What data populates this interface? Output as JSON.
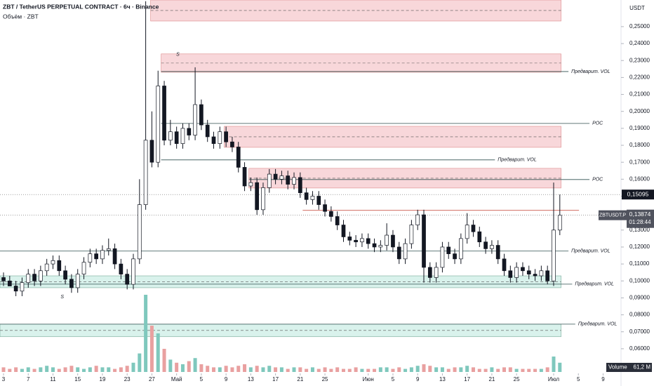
{
  "header": {
    "symbol_line": "ZBT / TetherUS PERPETUAL CONTRACT · 6ч · Binance",
    "volume_line": "Объём · ZBT"
  },
  "chart_data": {
    "type": "candlestick",
    "x": [
      0,
      1,
      2,
      3,
      4,
      5,
      6,
      7,
      8,
      9,
      10,
      11,
      12,
      13,
      14,
      15,
      16,
      17,
      18,
      19,
      20,
      21,
      22,
      23,
      24,
      25,
      26,
      27,
      28,
      29,
      30,
      31,
      32,
      33,
      34,
      35,
      36,
      37,
      38,
      39,
      40,
      41,
      42,
      43,
      44,
      45,
      46,
      47,
      48,
      49,
      50,
      51,
      52,
      53,
      54,
      55,
      56,
      57,
      58,
      59,
      60,
      61,
      62,
      63,
      64,
      65,
      66,
      67,
      68,
      69,
      70,
      71,
      72,
      73,
      74,
      75,
      76,
      77,
      78,
      79,
      80,
      81,
      82,
      83,
      84,
      85,
      86,
      87,
      88,
      89,
      90
    ],
    "open": [
      0.102,
      0.1,
      0.097,
      0.094,
      0.099,
      0.104,
      0.1,
      0.106,
      0.11,
      0.112,
      0.106,
      0.101,
      0.096,
      0.104,
      0.111,
      0.116,
      0.113,
      0.118,
      0.119,
      0.11,
      0.104,
      0.098,
      0.113,
      0.145,
      0.183,
      0.17,
      0.215,
      0.183,
      0.188,
      0.181,
      0.19,
      0.186,
      0.204,
      0.192,
      0.185,
      0.181,
      0.188,
      0.182,
      0.179,
      0.167,
      0.156,
      0.158,
      0.142,
      0.155,
      0.163,
      0.16,
      0.162,
      0.157,
      0.161,
      0.152,
      0.148,
      0.15,
      0.145,
      0.141,
      0.138,
      0.133,
      0.126,
      0.124,
      0.123,
      0.125,
      0.122,
      0.12,
      0.121,
      0.127,
      0.12,
      0.113,
      0.122,
      0.133,
      0.139,
      0.108,
      0.102,
      0.108,
      0.12,
      0.116,
      0.113,
      0.125,
      0.133,
      0.129,
      0.123,
      0.119,
      0.121,
      0.113,
      0.106,
      0.102,
      0.108,
      0.106,
      0.104,
      0.103,
      0.106,
      0.1,
      0.13
    ],
    "high": [
      0.105,
      0.103,
      0.1,
      0.102,
      0.107,
      0.107,
      0.109,
      0.113,
      0.115,
      0.115,
      0.109,
      0.104,
      0.107,
      0.114,
      0.119,
      0.119,
      0.121,
      0.125,
      0.122,
      0.113,
      0.107,
      0.116,
      0.16,
      0.265,
      0.2,
      0.224,
      0.218,
      0.195,
      0.191,
      0.193,
      0.193,
      0.226,
      0.207,
      0.195,
      0.188,
      0.191,
      0.191,
      0.185,
      0.182,
      0.17,
      0.161,
      0.161,
      0.158,
      0.166,
      0.166,
      0.165,
      0.165,
      0.164,
      0.164,
      0.155,
      0.153,
      0.153,
      0.148,
      0.144,
      0.141,
      0.136,
      0.129,
      0.127,
      0.128,
      0.128,
      0.125,
      0.124,
      0.134,
      0.13,
      0.123,
      0.125,
      0.136,
      0.142,
      0.142,
      0.111,
      0.111,
      0.123,
      0.123,
      0.119,
      0.128,
      0.14,
      0.136,
      0.132,
      0.126,
      0.124,
      0.124,
      0.116,
      0.109,
      0.111,
      0.111,
      0.109,
      0.107,
      0.109,
      0.109,
      0.158,
      0.151
    ],
    "low": [
      0.097,
      0.097,
      0.091,
      0.091,
      0.096,
      0.097,
      0.097,
      0.103,
      0.107,
      0.103,
      0.098,
      0.093,
      0.093,
      0.101,
      0.108,
      0.11,
      0.11,
      0.115,
      0.107,
      0.101,
      0.095,
      0.095,
      0.11,
      0.142,
      0.167,
      0.167,
      0.18,
      0.18,
      0.178,
      0.178,
      0.183,
      0.183,
      0.189,
      0.182,
      0.178,
      0.178,
      0.179,
      0.176,
      0.164,
      0.153,
      0.153,
      0.139,
      0.139,
      0.152,
      0.157,
      0.157,
      0.154,
      0.154,
      0.149,
      0.145,
      0.145,
      0.142,
      0.138,
      0.135,
      0.13,
      0.123,
      0.121,
      0.12,
      0.12,
      0.119,
      0.117,
      0.117,
      0.118,
      0.117,
      0.11,
      0.11,
      0.119,
      0.13,
      0.099,
      0.099,
      0.099,
      0.105,
      0.113,
      0.11,
      0.11,
      0.122,
      0.126,
      0.12,
      0.116,
      0.116,
      0.11,
      0.103,
      0.099,
      0.099,
      0.103,
      0.101,
      0.1,
      0.1,
      0.098,
      0.097,
      0.127
    ],
    "close": [
      0.1,
      0.097,
      0.094,
      0.099,
      0.104,
      0.1,
      0.106,
      0.11,
      0.112,
      0.106,
      0.101,
      0.096,
      0.104,
      0.111,
      0.116,
      0.113,
      0.118,
      0.119,
      0.11,
      0.104,
      0.098,
      0.113,
      0.145,
      0.183,
      0.17,
      0.215,
      0.183,
      0.188,
      0.181,
      0.19,
      0.186,
      0.204,
      0.192,
      0.185,
      0.181,
      0.188,
      0.182,
      0.179,
      0.167,
      0.156,
      0.158,
      0.142,
      0.155,
      0.163,
      0.16,
      0.162,
      0.157,
      0.161,
      0.152,
      0.148,
      0.15,
      0.145,
      0.141,
      0.138,
      0.133,
      0.126,
      0.124,
      0.123,
      0.125,
      0.122,
      0.12,
      0.121,
      0.127,
      0.12,
      0.113,
      0.122,
      0.133,
      0.139,
      0.108,
      0.102,
      0.108,
      0.12,
      0.116,
      0.113,
      0.125,
      0.133,
      0.129,
      0.123,
      0.119,
      0.121,
      0.113,
      0.106,
      0.102,
      0.108,
      0.106,
      0.104,
      0.103,
      0.106,
      0.1,
      0.13,
      0.13874
    ],
    "volume": [
      3,
      2,
      3,
      2,
      3,
      2,
      3,
      4,
      3,
      2,
      3,
      4,
      3,
      2,
      3,
      4,
      3,
      3,
      2,
      3,
      4,
      6,
      12,
      50,
      30,
      25,
      15,
      8,
      6,
      5,
      7,
      9,
      5,
      4,
      3,
      3,
      4,
      3,
      4,
      5,
      3,
      4,
      3,
      4,
      3,
      3,
      2,
      3,
      3,
      2,
      3,
      2,
      3,
      2,
      3,
      2,
      2,
      3,
      2,
      2,
      2,
      3,
      3,
      2,
      3,
      2,
      3,
      4,
      5,
      4,
      3,
      3,
      2,
      3,
      3,
      4,
      3,
      2,
      2,
      3,
      2,
      3,
      3,
      2,
      2,
      2,
      2,
      2,
      3,
      10,
      6
    ],
    "up_color": "#ffffff",
    "down_color": "#131722",
    "wick_color": "#131722",
    "xlim": [
      -0.57,
      99.9
    ],
    "xticks": [
      {
        "value": 0,
        "label": "3"
      },
      {
        "value": 4,
        "label": "7"
      },
      {
        "value": 8,
        "label": "11"
      },
      {
        "value": 12,
        "label": "15"
      },
      {
        "value": 16,
        "label": "19"
      },
      {
        "value": 20,
        "label": "23"
      },
      {
        "value": 24,
        "label": "27"
      },
      {
        "value": 28,
        "label": "Май"
      },
      {
        "value": 32,
        "label": "5"
      },
      {
        "value": 36,
        "label": "9"
      },
      {
        "value": 40,
        "label": "13"
      },
      {
        "value": 44,
        "label": "17"
      },
      {
        "value": 48,
        "label": "21"
      },
      {
        "value": 52,
        "label": "25"
      },
      {
        "value": 59,
        "label": "Июн"
      },
      {
        "value": 63,
        "label": "5"
      },
      {
        "value": 67,
        "label": "9"
      },
      {
        "value": 71,
        "label": "13"
      },
      {
        "value": 75,
        "label": "17"
      },
      {
        "value": 79,
        "label": "21"
      },
      {
        "value": 83,
        "label": "25"
      },
      {
        "value": 89,
        "label": "Июл"
      },
      {
        "value": 93,
        "label": "5"
      },
      {
        "value": 97,
        "label": "9"
      }
    ],
    "ylim": [
      0.0463,
      0.2657
    ],
    "yticks": [
      {
        "value": 0.06,
        "label": "0,06000"
      },
      {
        "value": 0.07,
        "label": "0,07000"
      },
      {
        "value": 0.08,
        "label": "0,08000"
      },
      {
        "value": 0.09,
        "label": "0,09000"
      },
      {
        "value": 0.1,
        "label": "0,10000"
      },
      {
        "value": 0.11,
        "label": "0,11000"
      },
      {
        "value": 0.12,
        "label": "0,12000"
      },
      {
        "value": 0.13,
        "label": "0,13000"
      },
      {
        "value": 0.14,
        "label": "0,14000"
      },
      {
        "value": 0.15,
        "label": "0,15000"
      },
      {
        "value": 0.16,
        "label": "0,16000"
      },
      {
        "value": 0.17,
        "label": "0,17000"
      },
      {
        "value": 0.18,
        "label": "0,18000"
      },
      {
        "value": 0.19,
        "label": "0,19000"
      },
      {
        "value": 0.2,
        "label": "0,20000"
      },
      {
        "value": 0.21,
        "label": "0,21000"
      },
      {
        "value": 0.22,
        "label": "0,22000"
      },
      {
        "value": 0.23,
        "label": "0,23000"
      },
      {
        "value": 0.24,
        "label": "0,24000"
      },
      {
        "value": 0.25,
        "label": "0,25000"
      }
    ],
    "volume_ylim": [
      0,
      50
    ],
    "y_axis_unit": "USDT",
    "zones": [
      {
        "top": 0.2657,
        "bottom": 0.2533,
        "start": 23.8,
        "end": 90.2,
        "color": "#f8d7da"
      },
      {
        "top": 0.2339,
        "bottom": 0.2231,
        "start": 25.5,
        "end": 90.2,
        "color": "#f8d7da"
      },
      {
        "top": 0.1912,
        "bottom": 0.1788,
        "start": 35.7,
        "end": 90.2,
        "color": "#f8d7da"
      },
      {
        "top": 0.1664,
        "bottom": 0.1548,
        "start": 39.7,
        "end": 90.2,
        "color": "#f8d7da"
      },
      {
        "top": 0.103,
        "bottom": 0.096,
        "start": -0.57,
        "end": 90.2,
        "color": "#d9f2ec"
      },
      {
        "top": 0.0745,
        "bottom": 0.0671,
        "start": -0.57,
        "end": 90.2,
        "color": "#d9f2ec"
      }
    ],
    "levels": [
      {
        "price": 0.2235,
        "start": 25.5,
        "end": 91.4,
        "label": "Предварит. VOL"
      },
      {
        "price": 0.1929,
        "start": 25.5,
        "end": 94.8,
        "label": "POC"
      },
      {
        "price": 0.1714,
        "start": 25.5,
        "end": 79.5,
        "label": "Предварит. VOL"
      },
      {
        "price": 0.1598,
        "start": 39.7,
        "end": 94.8,
        "label": "POC"
      },
      {
        "price": 0.1176,
        "start": -0.57,
        "end": 91.4,
        "label": "Предварит. VOL"
      },
      {
        "price": 0.0981,
        "start": -0.57,
        "end": 92.0,
        "label": "Предварит. VOL"
      },
      {
        "price": 0.0745,
        "start": -0.57,
        "end": 92.5,
        "label": "Предварит. VOL"
      }
    ],
    "red_level": {
      "price": 0.1416,
      "start": 48.4,
      "end": 93.1
    },
    "annotations": [
      {
        "text": "S",
        "x": 9.5,
        "y": 0.0905
      },
      {
        "text": "S",
        "x": 28.2,
        "y": 0.2335
      }
    ],
    "marker_price": {
      "value": 0.15095,
      "label": "0,15095"
    },
    "last_price": {
      "value": 0.13874,
      "label": "0,13874",
      "symbol": "ZBTUSDT.P",
      "countdown": "01:28:44"
    },
    "volume_label": "Volume",
    "volume_value_label": "61,2 M"
  }
}
